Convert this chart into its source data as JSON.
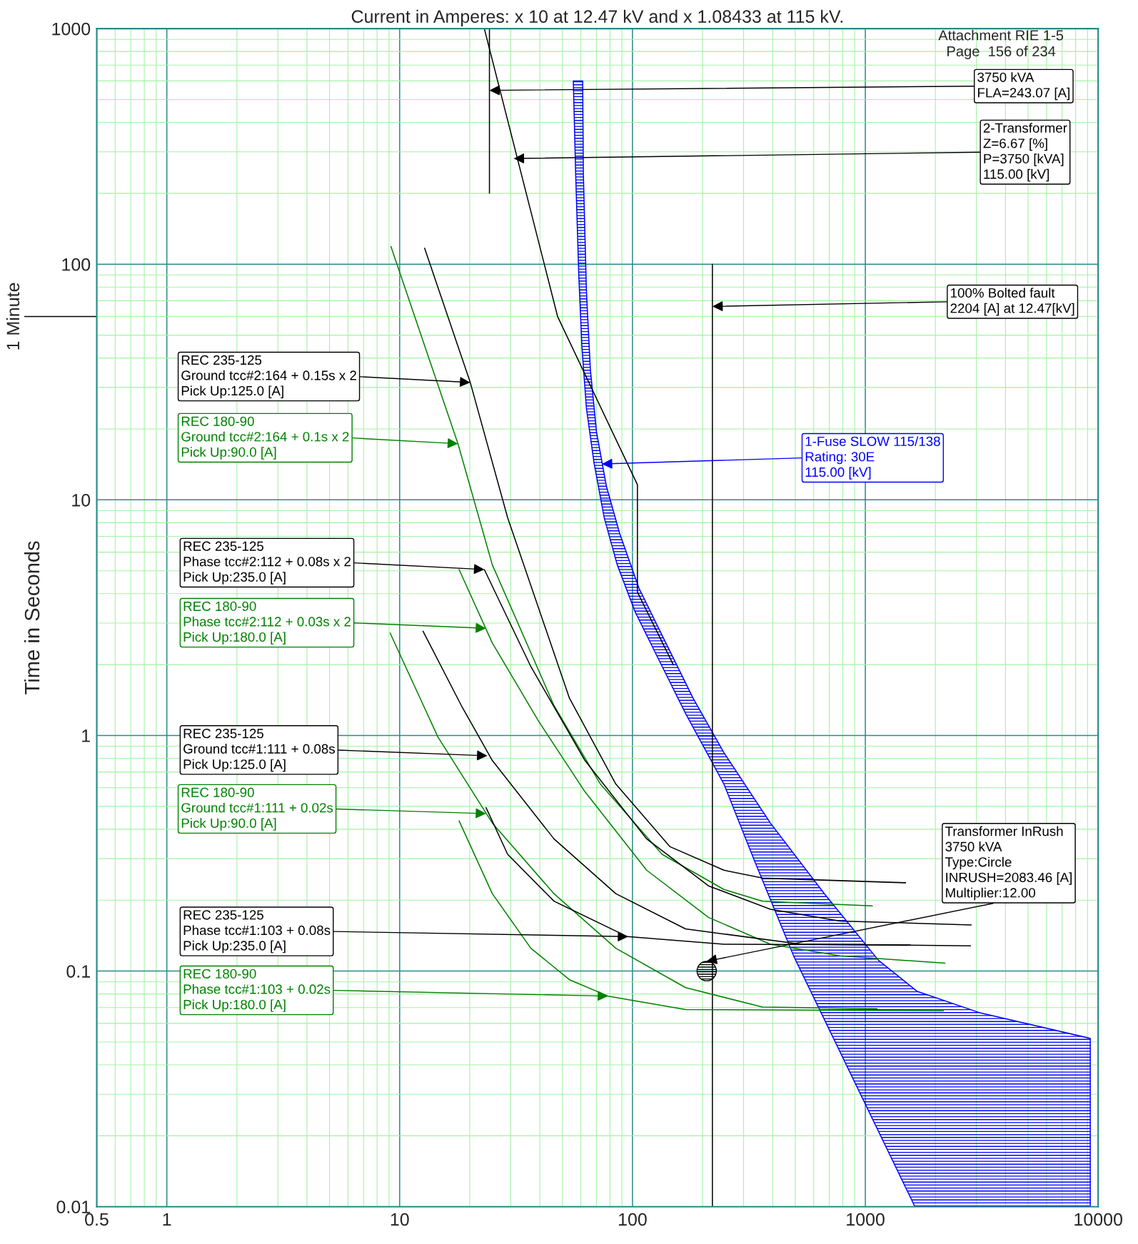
{
  "chart_data": {
    "type": "line",
    "title": "Current in Amperes: x 10 at 12.47 kV and x 1.08433 at 115 kV.",
    "ylabel": "Time in Seconds",
    "log": "xy",
    "grid": true,
    "xlim": [
      0.5,
      10000
    ],
    "ylim": [
      0.01,
      1000
    ],
    "xticks": [
      0.5,
      1,
      10,
      100,
      1000,
      10000,
      {
        "value": 0.6,
        "label": null
      },
      {
        "value": 0.7,
        "label": null
      },
      {
        "value": 0.8,
        "label": null
      },
      {
        "value": 0.9,
        "label": null
      },
      {
        "value": 2,
        "label": null
      },
      {
        "value": 3,
        "label": null
      },
      {
        "value": 4,
        "label": null
      },
      {
        "value": 5,
        "label": null
      },
      {
        "value": 6,
        "label": null
      },
      {
        "value": 7,
        "label": null
      },
      {
        "value": 8,
        "label": null
      },
      {
        "value": 9,
        "label": null
      },
      {
        "value": 20,
        "label": null
      },
      {
        "value": 30,
        "label": null
      },
      {
        "value": 40,
        "label": null
      },
      {
        "value": 50,
        "label": null
      },
      {
        "value": 60,
        "label": null
      },
      {
        "value": 70,
        "label": null
      },
      {
        "value": 80,
        "label": null
      },
      {
        "value": 90,
        "label": null
      },
      {
        "value": 200,
        "label": null
      },
      {
        "value": 300,
        "label": null
      },
      {
        "value": 400,
        "label": null
      },
      {
        "value": 500,
        "label": null
      },
      {
        "value": 600,
        "label": null
      },
      {
        "value": 700,
        "label": null
      },
      {
        "value": 800,
        "label": null
      },
      {
        "value": 900,
        "label": null
      },
      {
        "value": 2000,
        "label": null
      },
      {
        "value": 3000,
        "label": null
      },
      {
        "value": 4000,
        "label": null
      },
      {
        "value": 5000,
        "label": null
      },
      {
        "value": 6000,
        "label": null
      },
      {
        "value": 7000,
        "label": null
      },
      {
        "value": 8000,
        "label": null
      },
      {
        "value": 9000,
        "label": null
      }
    ],
    "yticks": [
      0.01,
      0.1,
      1,
      10,
      100,
      1000,
      {
        "value": 0.02,
        "label": null
      },
      {
        "value": 0.03,
        "label": null
      },
      {
        "value": 0.04,
        "label": null
      },
      {
        "value": 0.05,
        "label": null
      },
      {
        "value": 0.06,
        "label": null
      },
      {
        "value": 0.07,
        "label": null
      },
      {
        "value": 0.08,
        "label": null
      },
      {
        "value": 0.09,
        "label": null
      },
      {
        "value": 0.2,
        "label": null
      },
      {
        "value": 0.3,
        "label": null
      },
      {
        "value": 0.4,
        "label": null
      },
      {
        "value": 0.5,
        "label": null
      },
      {
        "value": 0.6,
        "label": null
      },
      {
        "value": 0.7,
        "label": null
      },
      {
        "value": 0.8,
        "label": null
      },
      {
        "value": 0.9,
        "label": null
      },
      {
        "value": 2,
        "label": null
      },
      {
        "value": 3,
        "label": null
      },
      {
        "value": 4,
        "label": null
      },
      {
        "value": 5,
        "label": null
      },
      {
        "value": 6,
        "label": null
      },
      {
        "value": 7,
        "label": null
      },
      {
        "value": 8,
        "label": null
      },
      {
        "value": 9,
        "label": null
      },
      {
        "value": 20,
        "label": null
      },
      {
        "value": 30,
        "label": null
      },
      {
        "value": 40,
        "label": null
      },
      {
        "value": 50,
        "label": null
      },
      {
        "value": 60,
        "label": null
      },
      {
        "value": 70,
        "label": null
      },
      {
        "value": 80,
        "label": null
      },
      {
        "value": 90,
        "label": null
      },
      {
        "value": 200,
        "label": null
      },
      {
        "value": 300,
        "label": null
      },
      {
        "value": 400,
        "label": null
      },
      {
        "value": 500,
        "label": null
      },
      {
        "value": 600,
        "label": null
      },
      {
        "value": 700,
        "label": null
      },
      {
        "value": 800,
        "label": null
      },
      {
        "value": 900,
        "label": null
      }
    ],
    "ref_lines": [
      {
        "axis": "y",
        "value": 60,
        "label": "1 Minute"
      }
    ],
    "series": [
      {
        "color": "#000000",
        "x": [
          23.1,
          47.7,
          105,
          105,
          150
        ],
        "values": [
          1000,
          59.9,
          11.6,
          4.06,
          1.99
        ]
      },
      {
        "color": "#000000",
        "x": [
          24.3,
          24.3
        ],
        "values": [
          1000,
          200
        ]
      },
      {
        "color": "#000000",
        "x": [
          220.4,
          220.4
        ],
        "values": [
          100,
          0.01
        ]
      },
      {
        "type": "area",
        "color": "#0000ff",
        "x": [
          55.7,
          57.0,
          58.8,
          60.6,
          63.4,
          68.4,
          75.6,
          86.0,
          102.6,
          129,
          169,
          247,
          336,
          492,
          1633,
          9250,
          9250,
          3080,
          1670,
          1140,
          667,
          391,
          247,
          182,
          134,
          106.6,
          88.1,
          77.3,
          70.0,
          65.9,
          63.4,
          61.5,
          61.1
        ],
        "values": [
          599,
          243,
          89.8,
          45.1,
          24.5,
          14.3,
          8.4,
          5.3,
          3.35,
          2.12,
          1.24,
          0.622,
          0.29,
          0.116,
          0.01,
          0.01,
          0.0518,
          0.0667,
          0.082,
          0.111,
          0.213,
          0.425,
          0.845,
          1.44,
          2.66,
          4.22,
          7.2,
          11.4,
          19.5,
          35.9,
          77.1,
          243,
          599
        ]
      },
      {
        "color": "#000000",
        "x": [
          12.8,
          20.1,
          29.1,
          53.6,
          84.8,
          145,
          247,
          362,
          1489
        ],
        "values": [
          117,
          31.5,
          8.39,
          1.44,
          0.622,
          0.337,
          0.268,
          0.248,
          0.237
        ]
      },
      {
        "color": "#008000",
        "x": [
          9.17,
          17.8,
          25.0,
          46.0,
          72.8,
          134,
          247,
          362,
          1072
        ],
        "values": [
          119,
          17.3,
          5.3,
          1.34,
          0.622,
          0.313,
          0.222,
          0.198,
          0.189
        ]
      },
      {
        "color": "#000000",
        "x": [
          23.1,
          36.6,
          62.5,
          115,
          212,
          391,
          778,
          2850
        ],
        "values": [
          5.06,
          1.96,
          0.783,
          0.364,
          0.23,
          0.183,
          0.163,
          0.157
        ]
      },
      {
        "color": "#008000",
        "x": [
          18.0,
          25.0,
          39.5,
          62.5,
          115,
          212,
          391,
          778,
          2198
        ],
        "values": [
          5.06,
          2.47,
          1.15,
          0.577,
          0.268,
          0.169,
          0.13,
          0.116,
          0.108
        ]
      },
      {
        "color": "#000000",
        "x": [
          12.6,
          18.4,
          25.0,
          46.0,
          84.8,
          169,
          531,
          2830
        ],
        "values": [
          2.77,
          1.34,
          0.783,
          0.364,
          0.213,
          0.151,
          0.13,
          0.128
        ]
      },
      {
        "color": "#008000",
        "x": [
          9.1,
          14.6,
          25.0,
          46.0,
          84.8,
          169,
          362,
          1122
        ],
        "values": [
          2.72,
          0.985,
          0.425,
          0.213,
          0.125,
          0.0851,
          0.0703,
          0.0693
        ]
      },
      {
        "color": "#000000",
        "x": [
          23.5,
          29.1,
          46.0,
          95.1,
          247,
          1560
        ],
        "values": [
          0.494,
          0.313,
          0.198,
          0.14,
          0.13,
          0.129
        ]
      },
      {
        "color": "#008000",
        "x": [
          18.0,
          25.0,
          36.6,
          53.6,
          78.5,
          169,
          2167
        ],
        "values": [
          0.434,
          0.213,
          0.125,
          0.0919,
          0.0783,
          0.0687,
          0.0678
        ]
      },
      {
        "type": "scatter",
        "marker": "circle",
        "color": "#000000",
        "x": [
          208.3
        ],
        "values": [
          0.1
        ]
      }
    ],
    "annotations": [
      "Attachment RIE 1-5\nPage  156 of 234",
      {
        "text": "3750 kVA\nFLA=243.07 [A]",
        "x": 24.3,
        "y": 547
      },
      {
        "text": "2-Transformer\nZ=6.67 [%]\nP=3750 [kVA]\n115.00 [kV]",
        "x": 30.9,
        "y": 281
      },
      {
        "text": "100% Bolted fault\n2204 [A] at 12.47[kV]",
        "x": 220.4,
        "y": 66.2
      },
      {
        "text": "REC 235-125\nGround tcc#2:164 + 0.15s x 2\nPick Up:125.0 [A]",
        "x": 20.1,
        "y": 31.5
      },
      {
        "text": "REC 180-90\nGround tcc#2:164 + 0.1s x 2\nPick Up:90.0 [A]",
        "x": 17.8,
        "y": 17.3
      },
      {
        "text": "1-Fuse SLOW 115/138\nRating: 30E\n115.00 [kV]",
        "x": 73.9,
        "y": 14.2
      },
      {
        "text": "REC 235-125\nPhase tcc#2:112 + 0.08s x 2\nPick Up:235.0 [A]",
        "x": 23.1,
        "y": 5.06
      },
      {
        "text": "REC 180-90\nPhase tcc#2:112 + 0.03s x 2\nPick Up:180.0 [A]",
        "x": 23.5,
        "y": 2.85
      },
      {
        "text": "REC 235-125\nGround tcc#1:111 + 0.08s\nPick Up:125.0 [A]",
        "x": 23.8,
        "y": 0.82
      },
      {
        "text": "REC 180-90\nGround tcc#1:111 + 0.02s\nPick Up:90.0 [A]",
        "x": 23.5,
        "y": 0.466
      },
      {
        "text": "Transformer InRush\n3750 kVA\nType:Circle\nINRUSH=2083.46 [A]\nMultiplier:12.00",
        "x": 208,
        "y": 0.11
      },
      {
        "text": "REC 235-125\nPhase tcc#1:103 + 0.08s\nPick Up:235.0 [A]",
        "x": 95.8,
        "y": 0.14
      },
      {
        "text": "REC 180-90\nPhase tcc#1:103 + 0.02s\nPick Up:180.0 [A]",
        "x": 78.5,
        "y": 0.0783
      }
    ]
  }
}
